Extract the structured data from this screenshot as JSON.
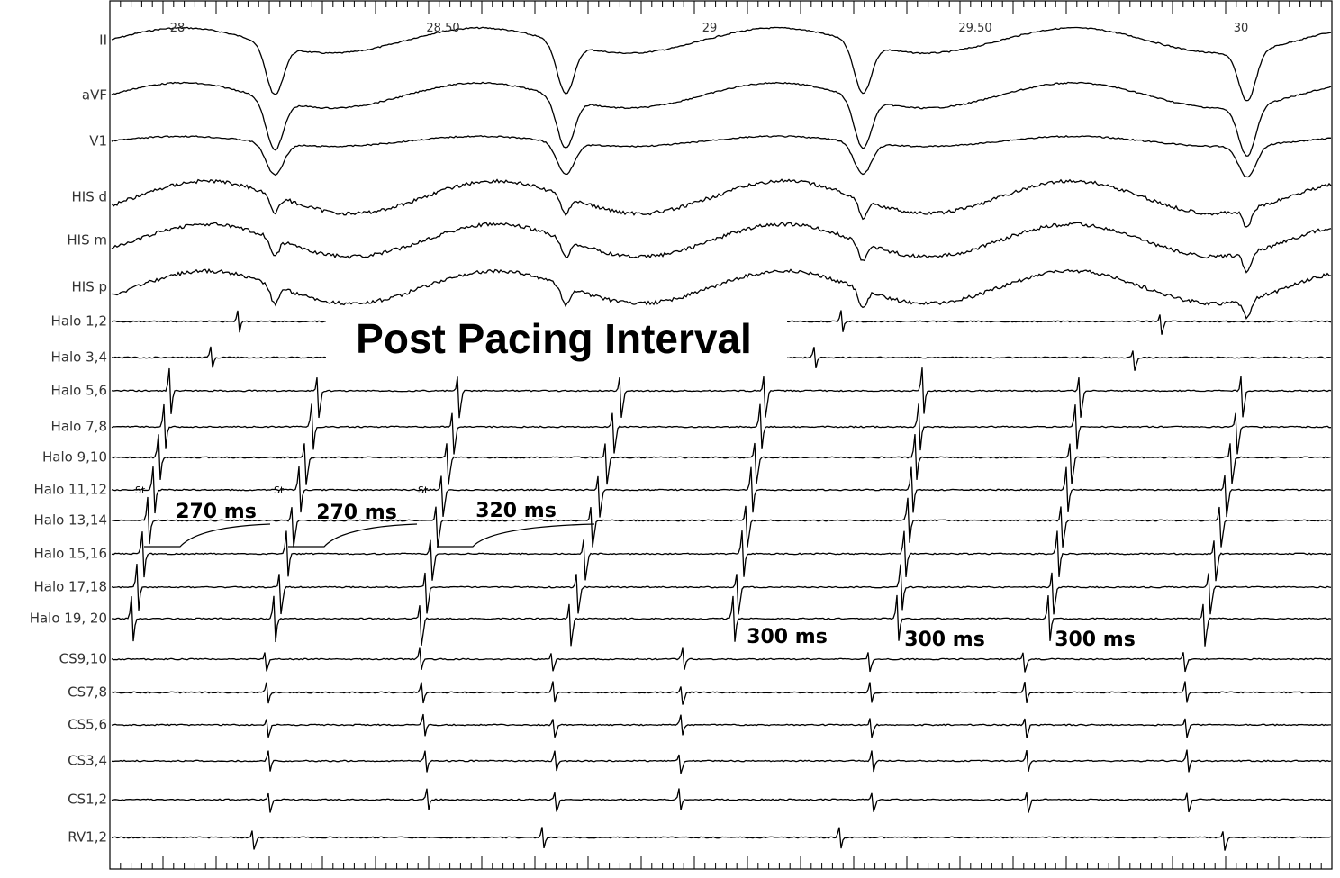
{
  "title": "Post Pacing Interval",
  "time_axis": {
    "labels": [
      "28",
      "28.50",
      "29",
      "29.50",
      "30"
    ]
  },
  "channels": [
    "II",
    "aVF",
    "V1",
    "HIS d",
    "HIS m",
    "HIS p",
    "Halo 1,2",
    "Halo 3,4",
    "Halo 5,6",
    "Halo 7,8",
    "Halo 9,10",
    "Halo 11,12",
    "Halo 13,14",
    "Halo 15,16",
    "Halo 17,18",
    "Halo 19, 20",
    "CS9,10",
    "CS7,8",
    "CS5,6",
    "CS3,4",
    "CS1,2",
    "RV1,2"
  ],
  "stim_markers": [
    "St",
    "St",
    "St"
  ],
  "intervals": [
    "270 ms",
    "270 ms",
    "320 ms",
    "300 ms",
    "300 ms",
    "300 ms"
  ]
}
